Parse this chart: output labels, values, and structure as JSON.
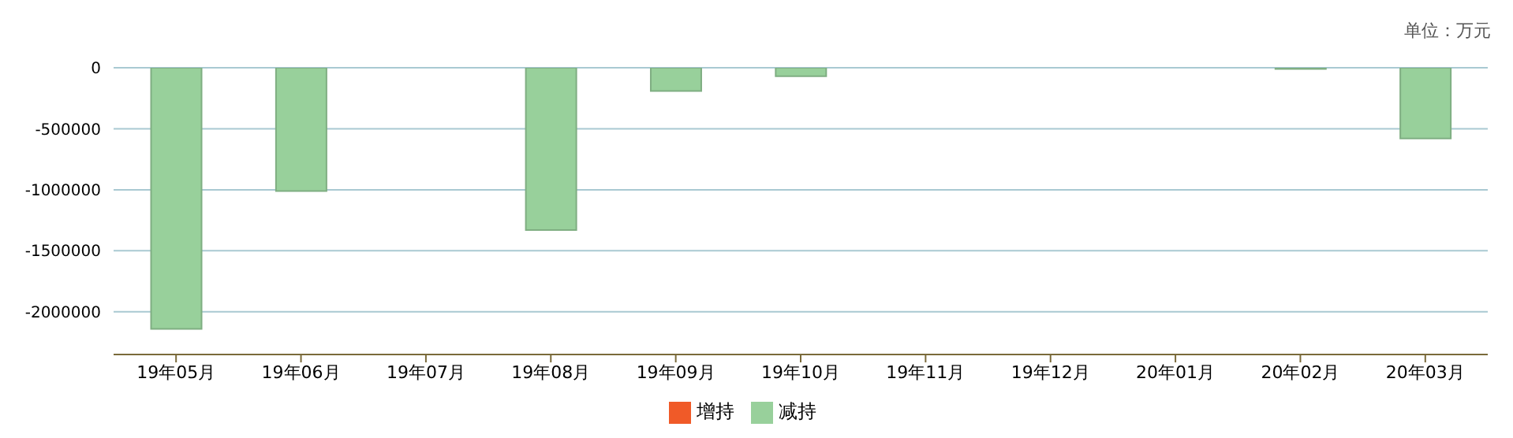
{
  "chart_data": {
    "type": "bar",
    "annotations": [
      "单位：万元"
    ],
    "categories": [
      "19年05月",
      "19年06月",
      "19年07月",
      "19年08月",
      "19年09月",
      "19年10月",
      "19年11月",
      "19年12月",
      "20年01月",
      "20年02月",
      "20年03月"
    ],
    "series": [
      {
        "name": "增持",
        "color": "#f05a28",
        "values": [
          null,
          null,
          null,
          null,
          null,
          null,
          null,
          null,
          null,
          null,
          null
        ]
      },
      {
        "name": "减持",
        "color": "#98d09b",
        "values": [
          -2140000,
          -1010000,
          null,
          -1330000,
          -190000,
          -70000,
          null,
          null,
          null,
          -10000,
          -580000
        ]
      }
    ],
    "stacked": true,
    "ylim": [
      -2350000,
      0
    ],
    "yticks": [
      -2000000,
      -1500000,
      -1000000,
      -500000,
      0
    ],
    "grid": "y",
    "legend": "bottom"
  }
}
